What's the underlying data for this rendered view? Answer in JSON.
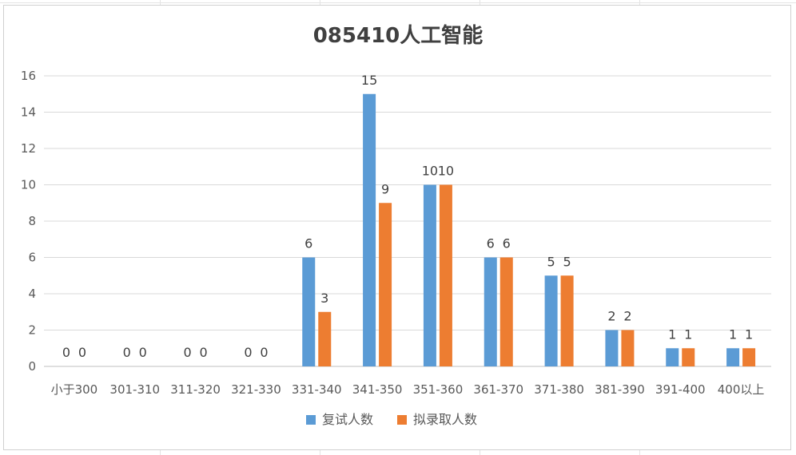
{
  "chart_data": {
    "type": "bar",
    "title": "085410人工智能",
    "categories": [
      "小于300",
      "301-310",
      "311-320",
      "321-330",
      "331-340",
      "341-350",
      "351-360",
      "361-370",
      "371-380",
      "381-390",
      "391-400",
      "400以上"
    ],
    "series": [
      {
        "name": "复试人数",
        "values": [
          0,
          0,
          0,
          0,
          6,
          15,
          10,
          6,
          5,
          2,
          1,
          1
        ],
        "color": "#5B9BD5"
      },
      {
        "name": "拟录取人数",
        "values": [
          0,
          0,
          0,
          0,
          3,
          9,
          10,
          6,
          5,
          2,
          1,
          1
        ],
        "color": "#ED7D31"
      }
    ],
    "xlabel": "",
    "ylabel": "",
    "ylim": [
      0,
      16
    ],
    "yticks": [
      0,
      2,
      4,
      6,
      8,
      10,
      12,
      14,
      16
    ],
    "grid": true,
    "legend": "bottom"
  }
}
